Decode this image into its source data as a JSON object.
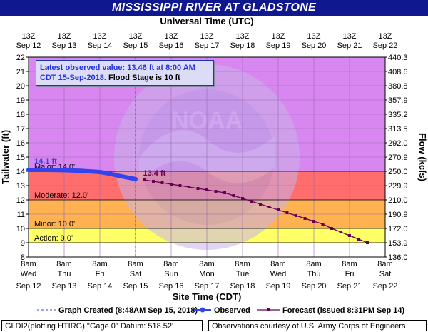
{
  "title": "MISSISSIPPI RIVER AT GLADSTONE",
  "info": {
    "line1": "Latest observed value: 13.46 ft at 8:00 AM",
    "line2a": "CDT 15-Sep-2018.",
    "line2b": " Flood Stage is 10 ft"
  },
  "footer": {
    "left": "GLDI2(plotting HTIRG) \"Gage 0\" Datum: 518.52'",
    "right": "Observations courtesy of U.S. Army Corps of Engineers"
  },
  "colors": {
    "major": "#d987f0",
    "moderate": "#ff6d6d",
    "minor": "#ffb24f",
    "action": "#ffff66",
    "normal": "#ffffff",
    "observed": "#3344ee",
    "forecast": "#660055",
    "title_bg": "#101890"
  },
  "chart_data": {
    "type": "line",
    "title": "MISSISSIPPI RIVER AT GLADSTONE",
    "top_axis_title": "Universal Time (UTC)",
    "xlabel": "Site Time (CDT)",
    "ylabel": "Tailwater (ft)",
    "y2label": "Flow (kcfs)",
    "ylim": [
      8,
      22
    ],
    "xlim_days": [
      0,
      10
    ],
    "y_ticks": [
      8,
      9,
      10,
      11,
      12,
      13,
      14,
      15,
      16,
      17,
      18,
      19,
      20,
      21,
      22
    ],
    "y2_ticks": [
      "136.0",
      "153.9",
      "172.0",
      "190.9",
      "210.0",
      "229.9",
      "250.0",
      "270.9",
      "292.0",
      "313.5",
      "335.2",
      "357.9",
      "380.8",
      "408.6",
      "440.3"
    ],
    "bottom_ticks": [
      {
        "time": "8am",
        "day": "Wed",
        "date": "Sep 12"
      },
      {
        "time": "8am",
        "day": "Thu",
        "date": "Sep 13"
      },
      {
        "time": "8am",
        "day": "Fri",
        "date": "Sep 14"
      },
      {
        "time": "8am",
        "day": "Sat",
        "date": "Sep 15"
      },
      {
        "time": "8am",
        "day": "Sun",
        "date": "Sep 16"
      },
      {
        "time": "8am",
        "day": "Mon",
        "date": "Sep 17"
      },
      {
        "time": "8am",
        "day": "Tue",
        "date": "Sep 18"
      },
      {
        "time": "8am",
        "day": "Wed",
        "date": "Sep 19"
      },
      {
        "time": "8am",
        "day": "Thu",
        "date": "Sep 20"
      },
      {
        "time": "8am",
        "day": "Fri",
        "date": "Sep 21"
      },
      {
        "time": "8am",
        "day": "Sat",
        "date": "Sep 22"
      }
    ],
    "top_ticks": [
      {
        "time": "13Z",
        "date": "Sep 12"
      },
      {
        "time": "13Z",
        "date": "Sep 13"
      },
      {
        "time": "13Z",
        "date": "Sep 14"
      },
      {
        "time": "13Z",
        "date": "Sep 15"
      },
      {
        "time": "13Z",
        "date": "Sep 16"
      },
      {
        "time": "13Z",
        "date": "Sep 17"
      },
      {
        "time": "13Z",
        "date": "Sep 18"
      },
      {
        "time": "13Z",
        "date": "Sep 19"
      },
      {
        "time": "13Z",
        "date": "Sep 20"
      },
      {
        "time": "13Z",
        "date": "Sep 21"
      },
      {
        "time": "13Z",
        "date": "Sep 22"
      }
    ],
    "flood_categories": [
      {
        "name": "Major",
        "label": "Major: 14.0'",
        "from": 14,
        "to": 22
      },
      {
        "name": "Moderate",
        "label": "Moderate: 12.0'",
        "from": 12,
        "to": 14
      },
      {
        "name": "Minor",
        "label": "Minor: 10.0'",
        "from": 10,
        "to": 12
      },
      {
        "name": "Action",
        "label": "Action: 9.0'",
        "from": 9,
        "to": 10
      }
    ],
    "observed": {
      "name": "Observed",
      "x": [
        0.0,
        0.5,
        1.0,
        1.5,
        2.0,
        2.25,
        2.5,
        2.75,
        3.0
      ],
      "y": [
        14.1,
        14.1,
        14.08,
        14.03,
        13.95,
        13.85,
        13.7,
        13.58,
        13.46
      ],
      "peak_label": "14.1 ft"
    },
    "forecast": {
      "name": "Forecast (issued 8:31PM Sep 14)",
      "x": [
        3.25,
        3.5,
        3.75,
        4.0,
        4.25,
        4.5,
        4.75,
        5.0,
        5.25,
        5.5,
        5.75,
        6.0,
        6.25,
        6.5,
        6.75,
        7.0,
        7.25,
        7.5,
        7.75,
        8.0,
        8.25,
        8.5,
        8.75,
        9.0,
        9.25,
        9.5
      ],
      "y": [
        13.4,
        13.3,
        13.2,
        13.1,
        13.0,
        12.9,
        12.8,
        12.7,
        12.6,
        12.5,
        12.3,
        12.1,
        11.9,
        11.7,
        11.5,
        11.3,
        11.1,
        10.9,
        10.7,
        10.5,
        10.3,
        10.0,
        9.75,
        9.5,
        9.25,
        9.0
      ],
      "first_label": "13.4 ft"
    },
    "graph_created_x": 3.0,
    "legend": {
      "graph_created": "Graph Created (8:48AM Sep 15, 2018)",
      "observed": "Observed",
      "forecast": "Forecast (issued 8:31PM Sep 14)"
    }
  }
}
